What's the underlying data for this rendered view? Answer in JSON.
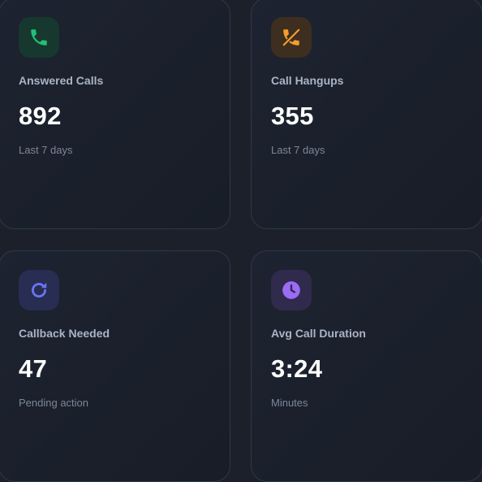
{
  "colors": {
    "background": "#1b202b",
    "answered": "#22c07a",
    "hangups": "#f59e2b",
    "callback": "#6b74f4",
    "duration": "#9b6cf5"
  },
  "cards": [
    {
      "icon": "phone-icon",
      "label": "Answered Calls",
      "value": "892",
      "subtitle": "Last 7 days"
    },
    {
      "icon": "phone-hangup-icon",
      "label": "Call Hangups",
      "value": "355",
      "subtitle": "Last 7 days"
    },
    {
      "icon": "refresh-icon",
      "label": "Callback Needed",
      "value": "47",
      "subtitle": "Pending action"
    },
    {
      "icon": "clock-icon",
      "label": "Avg Call Duration",
      "value": "3:24",
      "subtitle": "Minutes"
    }
  ]
}
